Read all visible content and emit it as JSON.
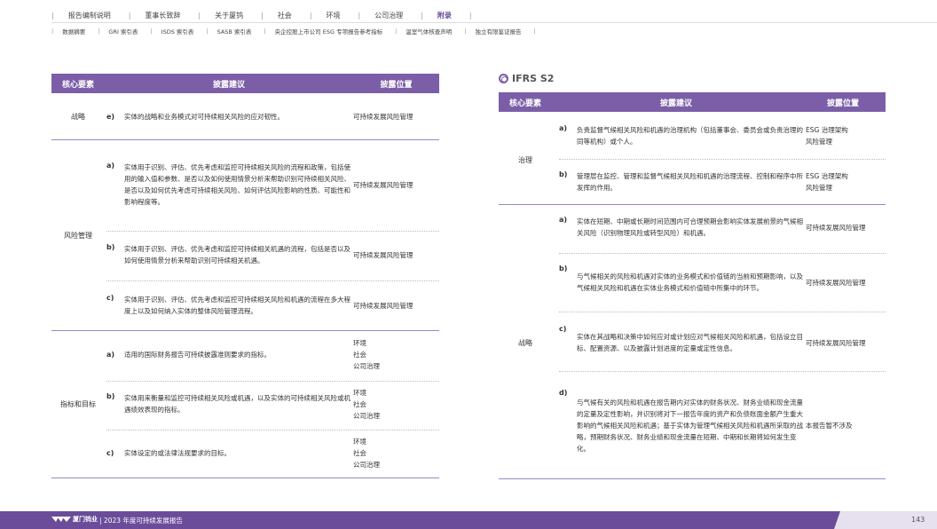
{
  "nav": {
    "primary": [
      "报告编制说明",
      "董事长致辞",
      "关于厦钨",
      "社会",
      "环境",
      "公司治理",
      "附录"
    ],
    "active_index": 6,
    "secondary": [
      "数据摘要",
      "GRI 索引表",
      "ISDS 索引表",
      "SASB 索引表",
      "央企控股上市公司 ESG 专项报告参考指标",
      "温室气体核查声明",
      "独立有限鉴证报告"
    ]
  },
  "left_table": {
    "headers": [
      "核心要素",
      "披露建议",
      "披露位置"
    ],
    "groups": [
      "战略",
      "风险管理",
      "指标和目标"
    ],
    "rows": [
      {
        "letter": "e)",
        "suggestion": "实体的战略和业务模式对可持续相关风险的应对韧性。",
        "location": "可持续发展风险管理"
      },
      {
        "letter": "a)",
        "suggestion": "实体用于识别、评估、优先考虑和监控可持续相关风险的流程和政策，包括使用的输入值和参数、是否以及如何使用情景分析来帮助识别可持续相关风险、是否以及如何优先考虑可持续相关风险、如何评估风险影响的性质、可能性和影响程度等。",
        "location": "可持续发展风险管理"
      },
      {
        "letter": "b)",
        "suggestion": "实体用于识别、评估、优先考虑和监控可持续相关机遇的流程，包括是否以及如何使用情景分析来帮助识别可持续相关机遇。",
        "location": "可持续发展风险管理"
      },
      {
        "letter": "c)",
        "suggestion": "实体用于识别、评估、优先考虑和监控可持续相关风险和机遇的流程在多大程度上以及如何纳入实体的整体风险管理流程。",
        "location": "可持续发展风险管理"
      },
      {
        "letter": "a)",
        "suggestion": "适用的国际财务报告可持续披露准则要求的指标。",
        "location": "环境\n社会\n公司治理"
      },
      {
        "letter": "b)",
        "suggestion": "实体用来衡量和监控可持续相关风险或机遇，以及实体的可持续相关风险或机遇绩效表现的指标。",
        "location": "环境\n社会\n公司治理"
      },
      {
        "letter": "c)",
        "suggestion": "实体设定的或法律法规要求的目标。",
        "location": "环境\n社会\n公司治理"
      }
    ]
  },
  "right_table": {
    "title": "IFRS S2",
    "headers": [
      "核心要素",
      "披露建议",
      "披露位置"
    ],
    "groups": [
      "治理",
      "战略"
    ],
    "rows": [
      {
        "letter": "a)",
        "suggestion": "负责监督气候相关风险和机遇的治理机构（包括董事会、委员会或负责治理的同等机构）或个人。",
        "location": "ESG 治理架构\n风险管理"
      },
      {
        "letter": "b)",
        "suggestion": "管理层在监控、管理和监督气候相关风险和机遇的治理流程、控制和程序中所发挥的作用。",
        "location": "ESG 治理架构\n风险管理"
      },
      {
        "letter": "a)",
        "suggestion": "实体在短期、中期或长期时间范围内可合理预期会影响实体发展前景的气候相关风险（识别物理风险或转型风险）和机遇。",
        "location": "可持续发展风险管理"
      },
      {
        "letter": "b)",
        "suggestion": "与气候相关的风险和机遇对实体的业务模式和价值链的当前和预期影响，以及气候相关风险和机遇在实体业务模式和价值链中所集中的环节。",
        "location": "可持续发展风险管理"
      },
      {
        "letter": "c)",
        "suggestion": "实体在其战略和决策中如何应对或计划应对气候相关风险和机遇，包括设立目标、配置资源、以及披露计划进度的定量或定性信息。",
        "location": "可持续发展风险管理"
      },
      {
        "letter": "d)",
        "suggestion": "与气候有关的风险和机遇在报告期内对实体的财务状况、财务业绩和现金流量的定量及定性影响，并识别将对下一报告年度的资产和负债账面金额产生重大影响的气候相关风险和机遇；基于实体为管理气候相关风险和机遇所采取的战略，预期财务状况、财务业绩和现金流量在短期、中期和长期将如何发生变化。",
        "location": "本报告暂不涉及"
      }
    ]
  },
  "footer": {
    "logo": "厦门钨业",
    "report": "2023 年度可持续发展报告",
    "page": "143"
  }
}
